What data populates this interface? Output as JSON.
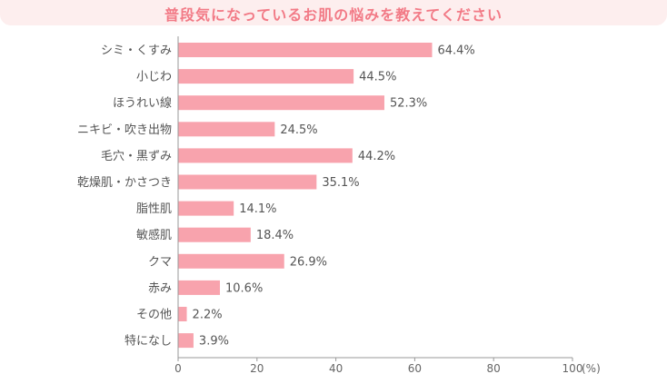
{
  "title": "普段気になっているお肌の悩みを教えてください",
  "colors": {
    "bar": "#f8a3ad",
    "title": "#f27a86",
    "title_bg": "#fdeeee",
    "axis": "#999999"
  },
  "chart_data": {
    "type": "bar",
    "orientation": "horizontal",
    "categories": [
      "シミ・くすみ",
      "小じわ",
      "ほうれい線",
      "ニキビ・吹き出物",
      "毛穴・黒ずみ",
      "乾燥肌・かさつき",
      "脂性肌",
      "敏感肌",
      "クマ",
      "赤み",
      "その他",
      "特になし"
    ],
    "values": [
      64.4,
      44.5,
      52.3,
      24.5,
      44.2,
      35.1,
      14.1,
      18.4,
      26.9,
      10.6,
      2.2,
      3.9
    ],
    "value_labels": [
      "64.4%",
      "44.5%",
      "52.3%",
      "24.5%",
      "44.2%",
      "35.1%",
      "14.1%",
      "18.4%",
      "26.9%",
      "10.6%",
      "2.2%",
      "3.9%"
    ],
    "xlim": [
      0,
      100
    ],
    "xticks": [
      0,
      20,
      40,
      60,
      80,
      100
    ],
    "xtick_labels": [
      "0",
      "20",
      "40",
      "60",
      "80",
      "100"
    ],
    "x_unit": "(%)",
    "grid": false
  }
}
